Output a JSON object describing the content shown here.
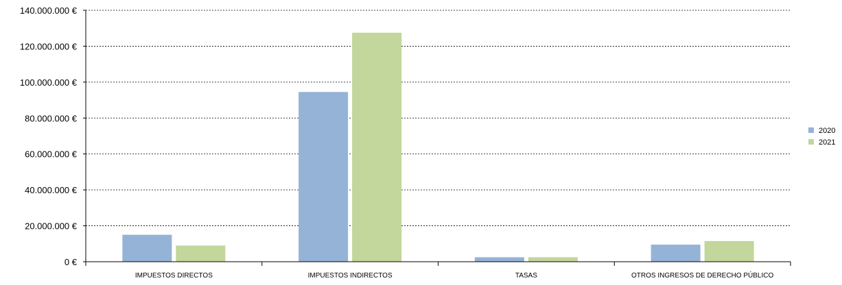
{
  "chart_data": {
    "type": "bar",
    "title": "",
    "xlabel": "",
    "ylabel": "",
    "categories": [
      "IMPUESTOS DIRECTOS",
      "IMPUESTOS INDIRECTOS",
      "TASAS",
      "OTROS INGRESOS DE DERECHO PÚBLICO"
    ],
    "series": [
      {
        "name": "2020",
        "color": "#95b3d7",
        "values": [
          15000000,
          94500000,
          2500000,
          9500000
        ]
      },
      {
        "name": "2021",
        "color": "#c3d69b",
        "values": [
          9000000,
          127500000,
          2500000,
          11500000
        ]
      }
    ],
    "ylim": [
      0,
      140000000
    ],
    "yticks": [
      0,
      20000000,
      40000000,
      60000000,
      80000000,
      100000000,
      120000000,
      140000000
    ],
    "ytick_labels": [
      "0 €",
      "20.000.000 €",
      "40.000.000 €",
      "60.000.000 €",
      "80.000.000 €",
      "100.000.000 €",
      "120.000.000 €",
      "140.000.000 €"
    ],
    "grid": true,
    "legend_position": "right"
  }
}
